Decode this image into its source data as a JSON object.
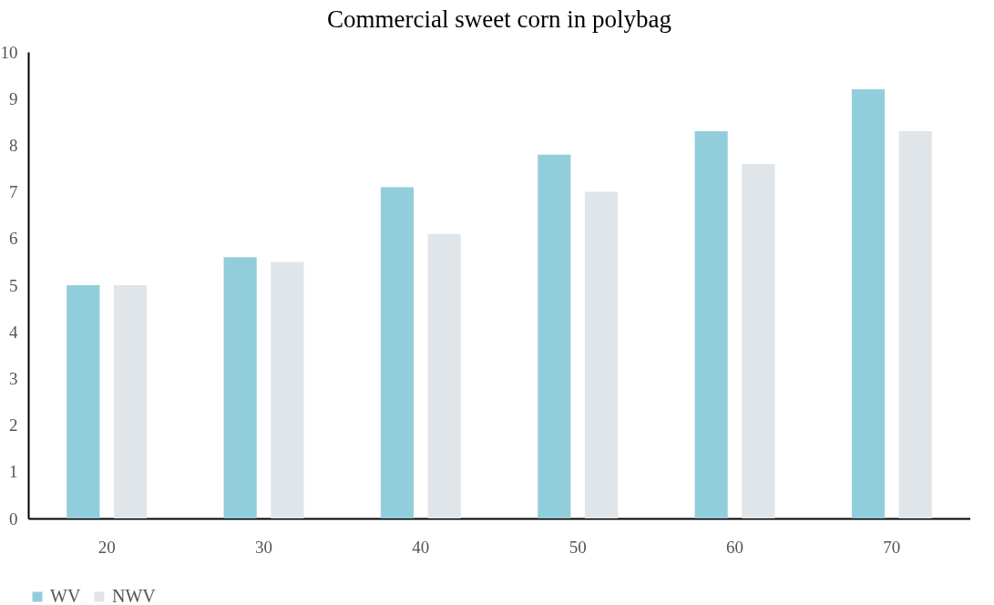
{
  "chart_data": {
    "type": "bar",
    "title": "Commercial sweet corn in polybag",
    "categories": [
      "20",
      "30",
      "40",
      "50",
      "60",
      "70"
    ],
    "series": [
      {
        "name": "WV",
        "color": "#92cddc",
        "values": [
          5,
          5.6,
          7.1,
          7.8,
          8.3,
          9.2
        ]
      },
      {
        "name": "NWV",
        "color": "#dfe5e9",
        "values": [
          5,
          5.5,
          6.1,
          7.0,
          7.6,
          8.3
        ]
      }
    ],
    "ylim": [
      0,
      10
    ],
    "yticks": [
      0,
      1,
      2,
      3,
      4,
      5,
      6,
      7,
      8,
      9,
      10
    ],
    "grid": false,
    "legend": "bottom"
  }
}
